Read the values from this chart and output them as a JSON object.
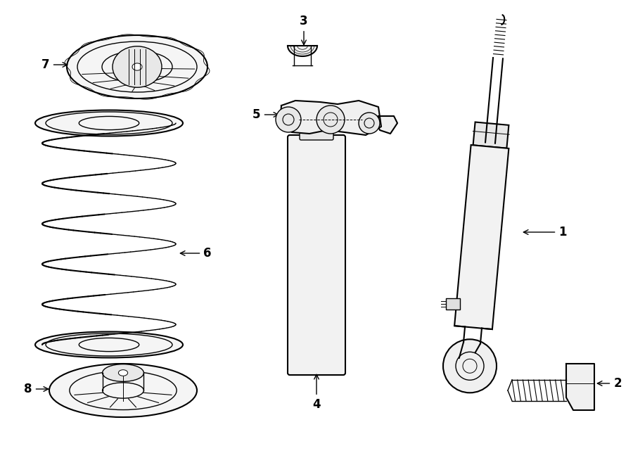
{
  "bg_color": "#ffffff",
  "line_color": "#000000",
  "fig_width": 9.0,
  "fig_height": 6.61,
  "lw": 1.0,
  "lw_thick": 1.5
}
